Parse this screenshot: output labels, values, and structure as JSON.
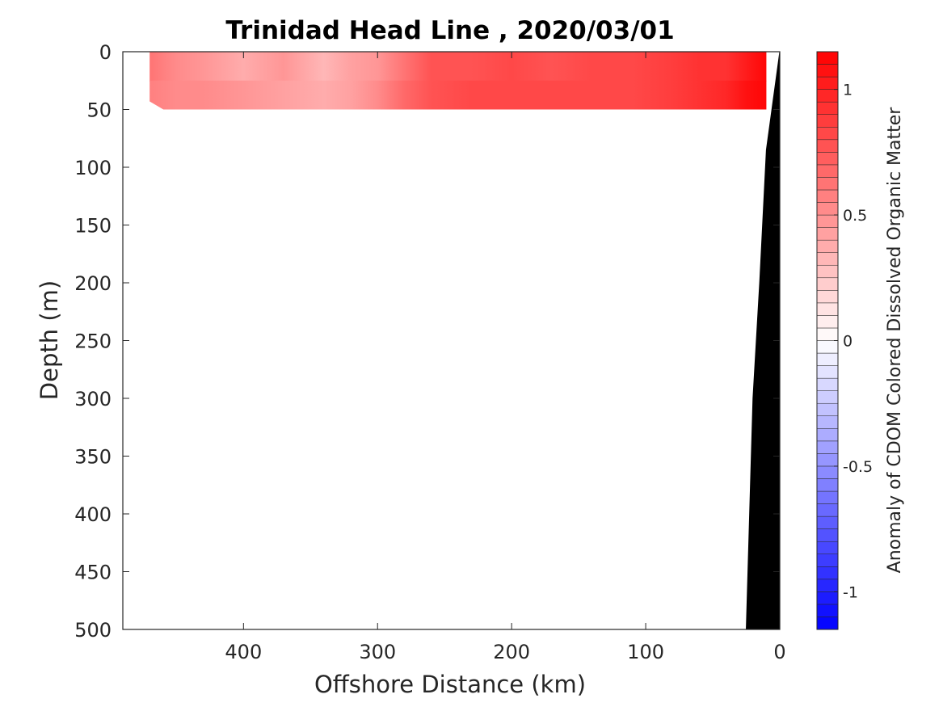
{
  "chart_data": {
    "type": "heatmap",
    "title": "Trinidad Head Line , 2020/03/01",
    "xlabel": "Offshore Distance (km)",
    "ylabel": "Depth (m)",
    "colorbar_label": "Anomaly of CDOM Colored Dissolved Organic Matter",
    "x_axis": {
      "reversed": true,
      "xlim": [
        490,
        0
      ],
      "ticks": [
        400,
        300,
        200,
        100,
        0
      ],
      "tick_labels": [
        "400",
        "300",
        "200",
        "100",
        "0"
      ]
    },
    "y_axis": {
      "reversed": true,
      "ylim": [
        0,
        500
      ],
      "ticks": [
        0,
        50,
        100,
        150,
        200,
        250,
        300,
        350,
        400,
        450,
        500
      ],
      "tick_labels": [
        "0",
        "50",
        "100",
        "150",
        "200",
        "250",
        "300",
        "350",
        "400",
        "450",
        "500"
      ]
    },
    "colorbar": {
      "clim": [
        -1.15,
        1.15
      ],
      "ticks": [
        1,
        0.5,
        0,
        -0.5,
        -1
      ],
      "tick_labels": [
        "1",
        "0.5",
        "0",
        "-0.5",
        "-1"
      ],
      "colormap": "blue-white-red",
      "low_color": "#0000ff",
      "mid_color": "#ffffff",
      "high_color": "#ff0000",
      "levels": 46
    },
    "data_region": {
      "depth_range_m": [
        0,
        50
      ],
      "distance_range_km": [
        10,
        470
      ]
    },
    "anomaly_profile": {
      "distance_km": [
        470,
        450,
        430,
        400,
        370,
        340,
        320,
        300,
        280,
        260,
        230,
        200,
        170,
        140,
        110,
        80,
        60,
        40,
        25,
        10
      ],
      "shallow_0_25m": [
        0.6,
        0.5,
        0.45,
        0.38,
        0.46,
        0.32,
        0.4,
        0.48,
        0.62,
        0.75,
        0.78,
        0.8,
        0.78,
        0.8,
        0.82,
        0.85,
        0.9,
        0.95,
        1.02,
        1.1
      ],
      "deep_25_50m": [
        0.55,
        0.52,
        0.5,
        0.45,
        0.42,
        0.38,
        0.4,
        0.5,
        0.65,
        0.78,
        0.82,
        0.8,
        0.8,
        0.82,
        0.84,
        0.88,
        0.92,
        0.97,
        1.05,
        1.12
      ]
    },
    "bathymetry": {
      "color": "#000000",
      "distance_km": [
        0,
        10,
        15,
        20,
        25
      ],
      "depth_m": [
        0,
        85,
        200,
        300,
        500
      ]
    },
    "grid": false,
    "legend": "colorbar-right"
  }
}
